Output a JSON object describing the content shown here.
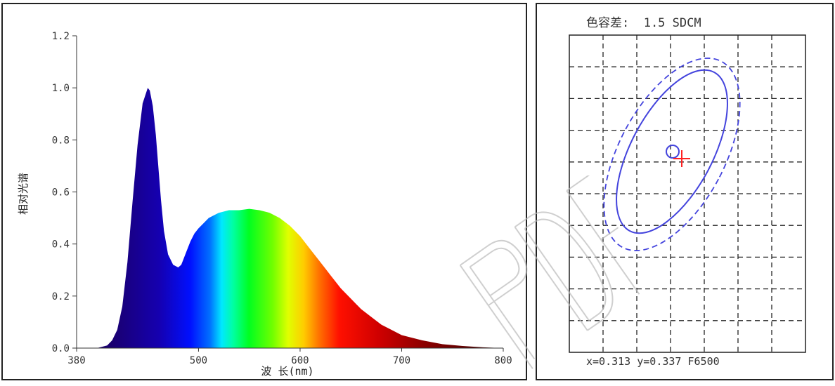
{
  "chart_data": [
    {
      "type": "area",
      "xlabel": "波 长(nm)",
      "ylabel": "相对光谱",
      "xlim": [
        380,
        800
      ],
      "ylim": [
        0,
        1.2
      ],
      "x_ticks": [
        "380",
        "500",
        "600",
        "700",
        "800"
      ],
      "x_tick_values": [
        380,
        500,
        600,
        700,
        800
      ],
      "y_ticks": [
        "0.0",
        "0.2",
        "0.4",
        "0.6",
        "0.8",
        "1.0",
        "1.2"
      ],
      "y_tick_values": [
        0.0,
        0.2,
        0.4,
        0.6,
        0.8,
        1.0,
        1.2
      ],
      "fill": "spectral-rainbow",
      "series": [
        {
          "x": [
            380,
            400,
            410,
            415,
            420,
            425,
            430,
            435,
            440,
            445,
            450,
            452,
            455,
            458,
            460,
            463,
            466,
            470,
            475,
            480,
            483,
            485,
            488,
            492,
            496,
            500,
            505,
            510,
            515,
            520,
            530,
            540,
            550,
            560,
            570,
            580,
            590,
            600,
            610,
            620,
            630,
            640,
            650,
            660,
            670,
            680,
            690,
            700,
            720,
            740,
            760,
            780,
            800
          ],
          "values": [
            0.0,
            0.0,
            0.01,
            0.03,
            0.07,
            0.16,
            0.33,
            0.56,
            0.78,
            0.94,
            1.0,
            0.99,
            0.93,
            0.82,
            0.72,
            0.57,
            0.45,
            0.36,
            0.32,
            0.31,
            0.32,
            0.34,
            0.37,
            0.41,
            0.44,
            0.46,
            0.48,
            0.5,
            0.51,
            0.52,
            0.53,
            0.53,
            0.535,
            0.53,
            0.52,
            0.5,
            0.47,
            0.43,
            0.38,
            0.33,
            0.28,
            0.23,
            0.19,
            0.15,
            0.12,
            0.09,
            0.07,
            0.05,
            0.03,
            0.015,
            0.008,
            0.003,
            0.0
          ]
        }
      ]
    },
    {
      "type": "scatter",
      "title": "色容差:  1.5 SDCM",
      "grid": true,
      "readout": "x=0.313 y=0.337 F6500",
      "colors": {
        "ellipse": "#4444dd",
        "measured_point": "#ff2222"
      }
    }
  ]
}
